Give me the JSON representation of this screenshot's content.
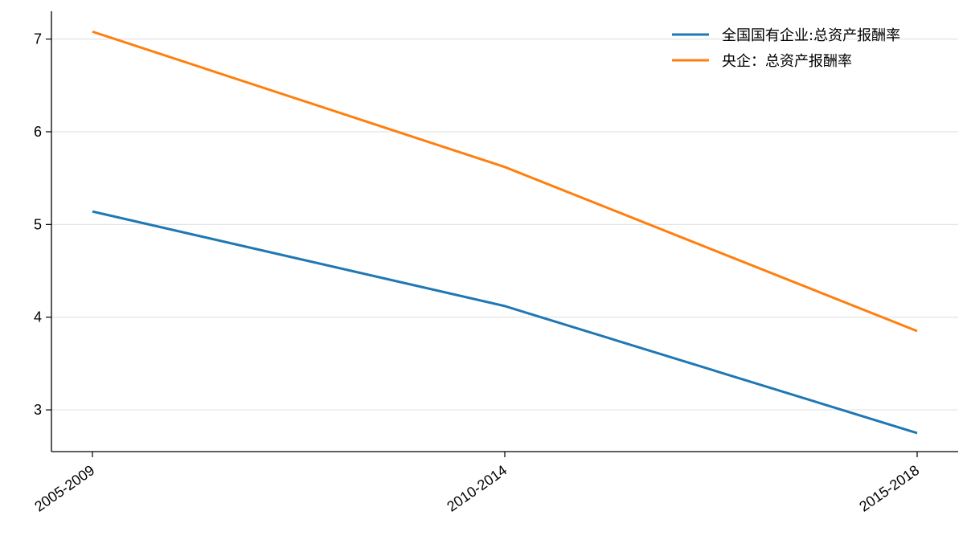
{
  "chart_data": {
    "type": "line",
    "title": "",
    "xlabel": "",
    "ylabel": "",
    "categories": [
      "2005-2009",
      "2010-2014",
      "2015-2018"
    ],
    "series": [
      {
        "name": "全国国有企业:总资产报酬率",
        "color": "#1f77b4",
        "values": [
          5.14,
          4.12,
          2.75
        ]
      },
      {
        "name": "央企：总资产报酬率",
        "color": "#ff7f0e",
        "values": [
          7.08,
          5.62,
          3.85
        ]
      }
    ],
    "ylim": [
      2.55,
      7.3
    ],
    "yticks": [
      3,
      4,
      5,
      6,
      7
    ],
    "grid": "horizontal",
    "legend_position": "top-right"
  }
}
